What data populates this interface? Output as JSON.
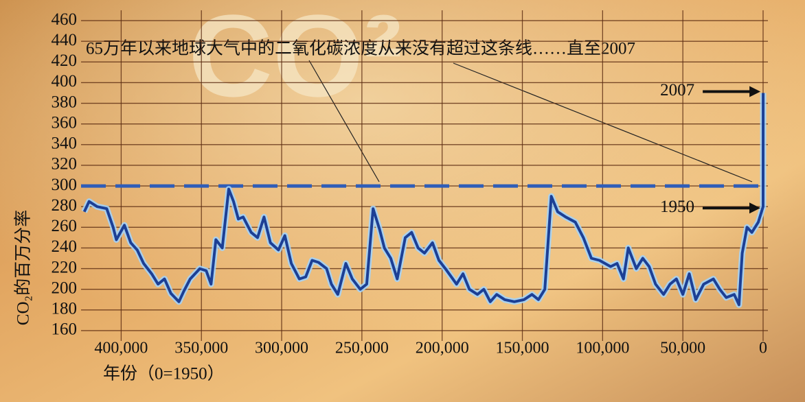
{
  "chart_data": {
    "type": "line",
    "title": "65万年以来地球大气中的二氧化碳浓度从来没有超过这条线……直至2007",
    "background_text": "CO²",
    "y_label": "CO₂的百万分率",
    "x_label": "年份（0=1950）",
    "x": [
      423000,
      420000,
      415000,
      409000,
      405000,
      403000,
      398000,
      394000,
      390000,
      386000,
      381000,
      377000,
      373000,
      369000,
      364000,
      361000,
      357000,
      351000,
      347000,
      344000,
      341000,
      337000,
      333000,
      330000,
      327000,
      324000,
      319000,
      315000,
      311000,
      307000,
      302000,
      298000,
      294000,
      289000,
      285000,
      281000,
      277000,
      272000,
      269000,
      265000,
      260000,
      256000,
      251000,
      247000,
      243000,
      239000,
      236000,
      232000,
      228000,
      223000,
      219000,
      215000,
      211000,
      206000,
      202000,
      198000,
      191000,
      187000,
      183000,
      178000,
      174000,
      170000,
      166000,
      161000,
      155000,
      149000,
      144000,
      140000,
      136000,
      132000,
      128000,
      123000,
      117000,
      112000,
      107000,
      102000,
      95000,
      91000,
      87000,
      84000,
      79000,
      75000,
      71000,
      67000,
      62000,
      58000,
      54000,
      50000,
      46000,
      42000,
      37000,
      31000,
      27000,
      23000,
      18000,
      15000,
      13000,
      10000,
      7000,
      3000,
      0,
      -57
    ],
    "series": [
      {
        "name": "CO2",
        "color": "#1c3f95",
        "values": [
          275,
          285,
          280,
          278,
          260,
          248,
          262,
          245,
          238,
          225,
          215,
          205,
          210,
          196,
          188,
          198,
          210,
          220,
          218,
          205,
          248,
          240,
          297,
          285,
          268,
          270,
          255,
          250,
          270,
          245,
          238,
          252,
          225,
          210,
          212,
          228,
          226,
          220,
          205,
          195,
          225,
          210,
          200,
          205,
          278,
          258,
          240,
          230,
          210,
          250,
          255,
          240,
          235,
          245,
          228,
          220,
          205,
          215,
          200,
          195,
          200,
          188,
          195,
          190,
          188,
          190,
          195,
          190,
          200,
          290,
          275,
          270,
          265,
          250,
          230,
          228,
          222,
          225,
          210,
          240,
          220,
          230,
          222,
          205,
          195,
          205,
          210,
          195,
          215,
          190,
          205,
          210,
          200,
          192,
          195,
          185,
          235,
          260,
          255,
          265,
          280,
          390
        ]
      }
    ],
    "threshold": 300,
    "threshold_color": "#2f5db8",
    "annotations": [
      "2007",
      "1950"
    ],
    "xlim": [
      425000,
      -3000
    ],
    "ylim": [
      150,
      470
    ],
    "xticks": [
      {
        "value": 400000,
        "label": "400,000"
      },
      {
        "value": 350000,
        "label": "350,000"
      },
      {
        "value": 300000,
        "label": "300,000"
      },
      {
        "value": 250000,
        "label": "250,000"
      },
      {
        "value": 200000,
        "label": "200,000"
      },
      {
        "value": 150000,
        "label": "150,000"
      },
      {
        "value": 100000,
        "label": "100,000"
      },
      {
        "value": 50000,
        "label": "50,000"
      },
      0
    ],
    "yticks": [
      160,
      180,
      200,
      220,
      240,
      260,
      280,
      300,
      320,
      340,
      360,
      380,
      400,
      420,
      440,
      460
    ],
    "grid": true
  }
}
